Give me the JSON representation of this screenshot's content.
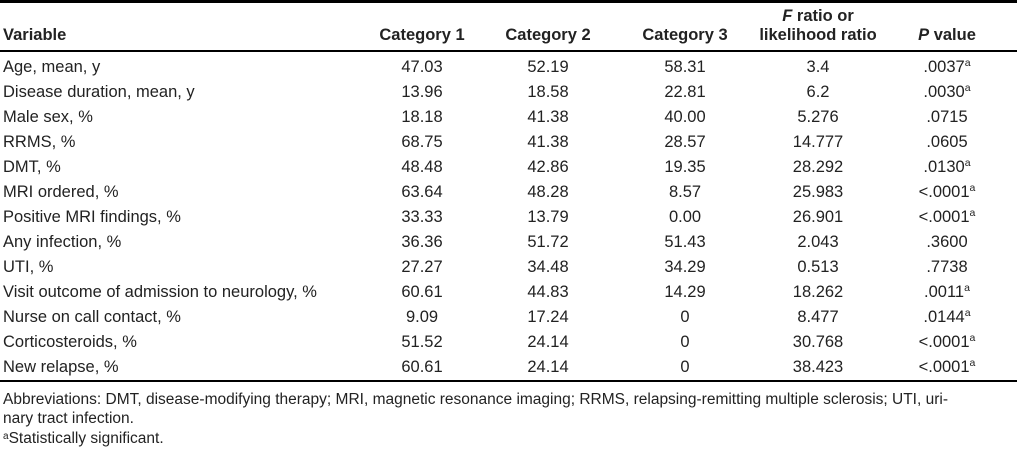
{
  "table": {
    "columns": {
      "variable": "Variable",
      "cat1": "Category 1",
      "cat2": "Category 2",
      "cat3": "Category 3",
      "f_italic": "F",
      "f_rest": " ratio or",
      "f_line2": "likelihood ratio",
      "p_italic": "P",
      "p_rest": " value"
    },
    "footnote_marker": "a",
    "rows": [
      {
        "label": "Age, mean, y",
        "c1": "47.03",
        "c2": "52.19",
        "c3": "58.31",
        "f": "3.4",
        "p": ".0037",
        "sig": true
      },
      {
        "label": "Disease duration, mean, y",
        "c1": "13.96",
        "c2": "18.58",
        "c3": "22.81",
        "f": "6.2",
        "p": ".0030",
        "sig": true
      },
      {
        "label": "Male sex, %",
        "c1": "18.18",
        "c2": "41.38",
        "c3": "40.00",
        "f": "5.276",
        "p": ".0715",
        "sig": false
      },
      {
        "label": "RRMS, %",
        "c1": "68.75",
        "c2": "41.38",
        "c3": "28.57",
        "f": "14.777",
        "p": ".0605",
        "sig": false
      },
      {
        "label": "DMT, %",
        "c1": "48.48",
        "c2": "42.86",
        "c3": "19.35",
        "f": "28.292",
        "p": ".0130",
        "sig": true
      },
      {
        "label": "MRI ordered, %",
        "c1": "63.64",
        "c2": "48.28",
        "c3": "8.57",
        "f": "25.983",
        "p": "<.0001",
        "sig": true
      },
      {
        "label": "Positive MRI findings, %",
        "c1": "33.33",
        "c2": "13.79",
        "c3": "0.00",
        "f": "26.901",
        "p": "<.0001",
        "sig": true
      },
      {
        "label": "Any infection, %",
        "c1": "36.36",
        "c2": "51.72",
        "c3": "51.43",
        "f": "2.043",
        "p": ".3600",
        "sig": false
      },
      {
        "label": "UTI, %",
        "c1": "27.27",
        "c2": "34.48",
        "c3": "34.29",
        "f": "0.513",
        "p": ".7738",
        "sig": false
      },
      {
        "label": "Visit outcome of admission to neurology, %",
        "c1": "60.61",
        "c2": "44.83",
        "c3": "14.29",
        "f": "18.262",
        "p": ".0011",
        "sig": true
      },
      {
        "label": "Nurse on call contact, %",
        "c1": "9.09",
        "c2": "17.24",
        "c3": "0",
        "f": "8.477",
        "p": ".0144",
        "sig": true
      },
      {
        "label": "Corticosteroids, %",
        "c1": "51.52",
        "c2": "24.14",
        "c3": "0",
        "f": "30.768",
        "p": "<.0001",
        "sig": true
      },
      {
        "label": "New relapse, %",
        "c1": "60.61",
        "c2": "24.14",
        "c3": "0",
        "f": "38.423",
        "p": "<.0001",
        "sig": true
      }
    ]
  },
  "footnotes": {
    "abbreviations_line1": "Abbreviations: DMT, disease-modifying therapy; MRI, magnetic resonance imaging; RRMS, relapsing-remitting multiple sclerosis; UTI, uri-",
    "abbreviations_line2": "nary tract infection.",
    "significance_marker": "a",
    "significance_text": "Statistically significant."
  },
  "colors": {
    "text": "#222222",
    "rule": "#000000",
    "background": "#ffffff"
  }
}
